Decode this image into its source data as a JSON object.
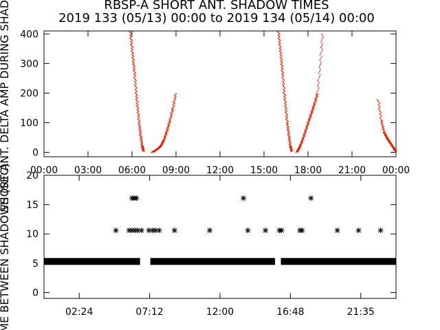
{
  "title_line1": "RBSP-A SHORT ANT. SHADOW TIMES",
  "title_line2": "2019 133 (05/13) 00:00 to 2019 134 (05/14) 00:00",
  "colors": {
    "top_series": "#dd2200",
    "bottom_series": "#000000"
  },
  "chart_data": [
    {
      "type": "scatter",
      "ylabel": "SHORT ANT. DELTA AMP DURING SHADOW",
      "xlim": [
        0,
        24
      ],
      "ylim": [
        -15,
        410
      ],
      "xticks": [
        0,
        3,
        6,
        9,
        12,
        15,
        18,
        21,
        24
      ],
      "xtick_labels": [
        "00:00",
        "03:00",
        "06:00",
        "09:00",
        "12:00",
        "15:00",
        "18:00",
        "21:00",
        "00:00"
      ],
      "yticks": [
        0,
        100,
        200,
        300,
        400
      ],
      "ytick_labels": [
        "0",
        "100",
        "200",
        "300",
        "400"
      ],
      "series": [
        {
          "color": "#dd2200",
          "segments": [
            {
              "x": [
                5.85,
                5.95,
                6.05,
                6.15,
                6.25,
                6.35,
                6.45,
                6.55,
                6.65,
                6.75
              ],
              "y": [
                410,
                360,
                310,
                260,
                200,
                150,
                100,
                60,
                25,
                5
              ]
            },
            {
              "x": [
                7.35,
                7.55,
                7.75,
                7.95,
                8.15,
                8.35,
                8.55,
                8.75,
                8.95
              ],
              "y": [
                2,
                8,
                15,
                25,
                45,
                75,
                110,
                150,
                200
              ]
            },
            {
              "x": [
                15.95,
                16.05,
                16.15,
                16.25,
                16.35,
                16.45,
                16.55,
                16.65,
                16.75,
                16.85
              ],
              "y": [
                410,
                360,
                310,
                260,
                200,
                150,
                100,
                60,
                25,
                5
              ]
            },
            {
              "x": [
                17.2,
                17.4,
                17.6,
                17.8,
                18.0,
                18.2,
                18.4,
                18.6,
                18.8,
                18.95
              ],
              "y": [
                2,
                20,
                45,
                75,
                105,
                135,
                165,
                200,
                300,
                400
              ]
            },
            {
              "x": [
                22.75,
                22.95,
                23.15,
                23.35,
                23.55,
                23.75,
                23.95
              ],
              "y": [
                180,
                110,
                70,
                50,
                35,
                20,
                5
              ]
            }
          ]
        }
      ]
    },
    {
      "type": "scatter",
      "ylabel": "TIME BETWEEN SHADOWS (SEC)",
      "xlim": [
        0,
        24
      ],
      "ylim": [
        -1,
        20
      ],
      "xticks": [
        2.4,
        7.2,
        12.0,
        16.8,
        21.6
      ],
      "xtick_labels": [
        "02:24",
        "07:12",
        "12:00",
        "16:48",
        "21:35"
      ],
      "yticks": [
        0,
        5,
        10,
        15,
        20
      ],
      "ytick_labels": [
        "0",
        "5",
        "10",
        "15",
        "20"
      ],
      "baseline": {
        "y": 5.3,
        "from": 0,
        "to": 24,
        "gaps": [
          [
            6.55,
            7.25
          ],
          [
            15.75,
            16.15
          ]
        ]
      },
      "points": [
        {
          "x": 6.0,
          "y": 16.1
        },
        {
          "x": 6.15,
          "y": 16.1
        },
        {
          "x": 6.3,
          "y": 16.1
        },
        {
          "x": 13.6,
          "y": 16.1
        },
        {
          "x": 18.2,
          "y": 16.1
        },
        {
          "x": 4.9,
          "y": 10.6
        },
        {
          "x": 5.8,
          "y": 10.6
        },
        {
          "x": 6.0,
          "y": 10.6
        },
        {
          "x": 6.2,
          "y": 10.6
        },
        {
          "x": 6.4,
          "y": 10.6
        },
        {
          "x": 6.65,
          "y": 10.6
        },
        {
          "x": 7.15,
          "y": 10.6
        },
        {
          "x": 7.4,
          "y": 10.6
        },
        {
          "x": 7.6,
          "y": 10.6
        },
        {
          "x": 7.85,
          "y": 10.6
        },
        {
          "x": 8.9,
          "y": 10.6
        },
        {
          "x": 11.3,
          "y": 10.6
        },
        {
          "x": 13.9,
          "y": 10.6
        },
        {
          "x": 15.1,
          "y": 10.6
        },
        {
          "x": 16.05,
          "y": 10.6
        },
        {
          "x": 16.2,
          "y": 10.6
        },
        {
          "x": 17.45,
          "y": 10.6
        },
        {
          "x": 17.6,
          "y": 10.6
        },
        {
          "x": 20.0,
          "y": 10.6
        },
        {
          "x": 21.45,
          "y": 10.6
        },
        {
          "x": 22.95,
          "y": 10.6
        }
      ]
    }
  ]
}
